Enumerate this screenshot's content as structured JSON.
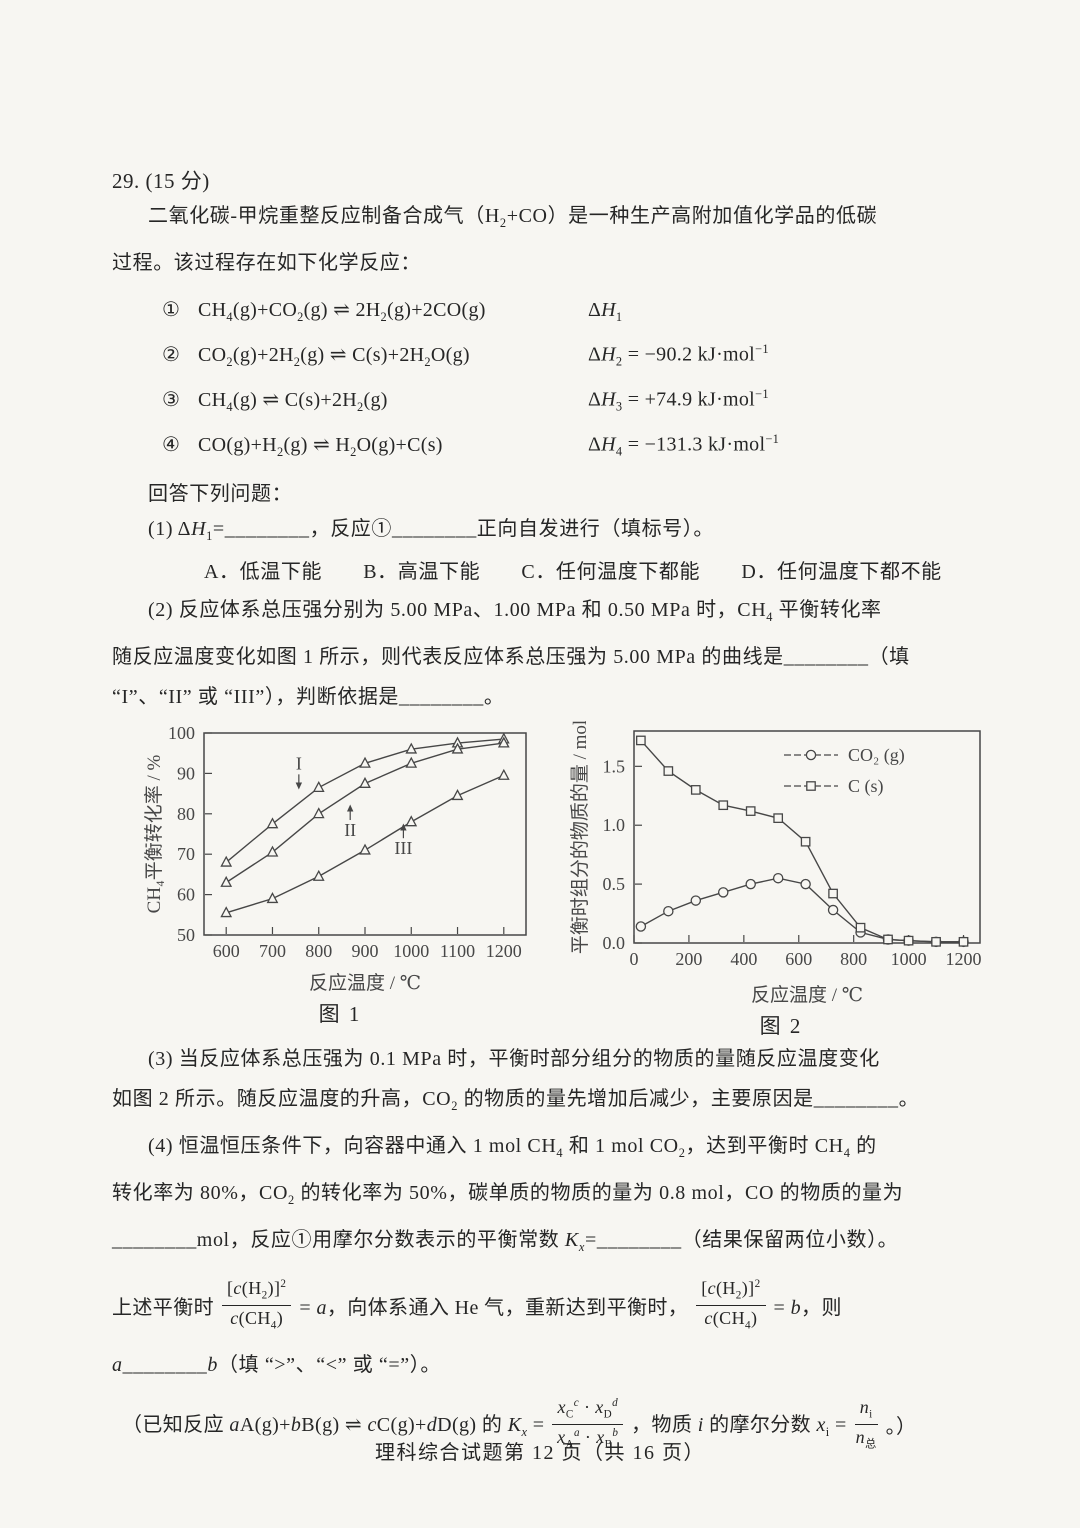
{
  "header": {
    "question_number": "29. (15 分)"
  },
  "intro": {
    "line1": "二氧化碳-甲烷重整反应制备合成气（H~2~+CO）是一种生产高附加值化学品的低碳",
    "line2": "过程。该过程存在如下化学反应："
  },
  "reactions": [
    {
      "num": "①",
      "eq": "CH~4~(g)+CO~2~(g) ⇌ 2H~2~(g)+2CO(g)",
      "dh": "Δ*H*~1~"
    },
    {
      "num": "②",
      "eq": "CO~2~(g)+2H~2~(g) ⇌ C(s)+2H~2~O(g)",
      "dh": "Δ*H*~2~ = −90.2 kJ·mol^−1^"
    },
    {
      "num": "③",
      "eq": "CH~4~(g) ⇌ C(s)+2H~2~(g)",
      "dh": "Δ*H*~3~ = +74.9 kJ·mol^−1^"
    },
    {
      "num": "④",
      "eq": "CO(g)+H~2~(g) ⇌ H~2~O(g)+C(s)",
      "dh": "Δ*H*~4~ = −131.3 kJ·mol^−1^"
    }
  ],
  "questions": {
    "answer_prompt": "回答下列问题：",
    "q1": "(1) Δ*H*~1~=________，反应①________正向自发进行（填标号）。",
    "q1_options": "A．低温下能　　B．高温下能　　C．任何温度下都能　　D．任何温度下都不能",
    "q2_line1": "(2) 反应体系总压强分别为 5.00 MPa、1.00 MPa 和 0.50 MPa 时，CH~4~ 平衡转化率",
    "q2_line2": "随反应温度变化如图 1 所示，则代表反应体系总压强为 5.00 MPa 的曲线是________（填",
    "q2_line3": "“I”、“II” 或 “III”），判断依据是________。",
    "q3_line1": "(3) 当反应体系总压强为 0.1 MPa 时，平衡时部分组分的物质的量随反应温度变化",
    "q3_line2": "如图 2 所示。随反应温度的升高，CO~2~ 的物质的量先增加后减少，主要原因是________。",
    "q4_line1": "(4) 恒温恒压条件下，向容器中通入 1 mol CH~4~ 和 1 mol CO~2~，达到平衡时 CH~4~ 的",
    "q4_line2": "转化率为 80%，CO~2~ 的转化率为 50%，碳单质的物质的量为 0.8 mol，CO 的物质的量为",
    "q4_line3": "________mol，反应①用摩尔分数表示的平衡常数 *K*~*x*~=________（结果保留两位小数）。",
    "eq_line": {
      "pre": "上述平衡时",
      "frac1_num": "[*c*(H~2~)]^2^",
      "frac1_den": "*c*(CH~4~)",
      "mid": "= *a*，向体系通入 He 气，重新达到平衡时，",
      "frac2_num": "[*c*(H~2~)]^2^",
      "frac2_den": "*c*(CH~4~)",
      "post": "= *b*，则"
    },
    "ab_line": "*a*________*b*（填 “>”、“<” 或 “=”）。",
    "known_line": {
      "pre": "（已知反应 *a*A(g)+*b*B(g) ⇌ *c*C(g)+*d*D(g) 的 *K*~*x*~ =",
      "frac1_num": "*x*~C~^*c*^ · *x*~D~^*d*^",
      "frac1_den": "*x*~A~^*a*^ · *x*~B~^*b*^",
      "mid": "，物质 *i* 的摩尔分数 *x*~i~ =",
      "frac2_num": "*n*~i~",
      "frac2_den": "*n*~总~",
      "post": "。）"
    }
  },
  "footer": "理科综合试题第 12 页（共 16 页）",
  "chart_data": [
    {
      "type": "line",
      "title": "图 1",
      "xlabel": "反应温度 / ℃",
      "ylabel": "CH₄平衡转化率 / %",
      "x": [
        600,
        700,
        800,
        900,
        1000,
        1100,
        1200
      ],
      "xlim": [
        552,
        1248
      ],
      "ylim": [
        50,
        100
      ],
      "xticks": [
        600,
        700,
        800,
        900,
        1000,
        1100,
        1200
      ],
      "yticks": [
        50,
        60,
        70,
        80,
        90,
        100
      ],
      "grid": false,
      "series": [
        {
          "name": "I",
          "marker": "triangle",
          "values": [
            68,
            77.5,
            86.5,
            92.5,
            96,
            97.5,
            98.5
          ]
        },
        {
          "name": "II",
          "marker": "triangle",
          "values": [
            63,
            70.5,
            80,
            87.5,
            92.5,
            96,
            97.5
          ]
        },
        {
          "name": "III",
          "marker": "triangle",
          "values": [
            55.5,
            59,
            64.5,
            71,
            78,
            84.5,
            89.5
          ]
        }
      ],
      "annotations": [
        {
          "text": "I",
          "x": 757,
          "label_y": 91,
          "tip_y": 86,
          "dir": "down"
        },
        {
          "text": "II",
          "x": 868,
          "label_y": 74.5,
          "tip_y": 82.3,
          "dir": "up"
        },
        {
          "text": "III",
          "x": 983,
          "label_y": 70,
          "tip_y": 77.6,
          "dir": "up"
        }
      ]
    },
    {
      "type": "line",
      "title": "图 2",
      "xlabel": "反应温度 / ℃",
      "ylabel": "平衡时组分的物质的量 / mol",
      "xlim": [
        0,
        1260
      ],
      "ylim": [
        0,
        1.8
      ],
      "xticks": [
        0,
        200,
        400,
        600,
        800,
        1000,
        1200
      ],
      "yticks": [
        0,
        0.5,
        1,
        1.5
      ],
      "ytick_labels": [
        "0.0",
        "0.5",
        "1.0",
        "1.5"
      ],
      "grid": false,
      "legend": {
        "position": "top-right"
      },
      "series": [
        {
          "name": "CO₂ (g)",
          "marker": "circle",
          "x": [
            25,
            125,
            225,
            325,
            425,
            525,
            625,
            725,
            825,
            925,
            1000,
            1100,
            1200
          ],
          "values": [
            0.14,
            0.27,
            0.36,
            0.43,
            0.5,
            0.55,
            0.5,
            0.28,
            0.09,
            0.03,
            0.02,
            0.01,
            0.01
          ]
        },
        {
          "name": "C (s)",
          "marker": "square",
          "x": [
            25,
            125,
            225,
            325,
            425,
            525,
            625,
            725,
            825,
            925,
            1000,
            1100,
            1200
          ],
          "values": [
            1.72,
            1.46,
            1.3,
            1.17,
            1.12,
            1.06,
            0.86,
            0.42,
            0.13,
            0.03,
            0.02,
            0.01,
            0.01
          ]
        }
      ]
    }
  ]
}
